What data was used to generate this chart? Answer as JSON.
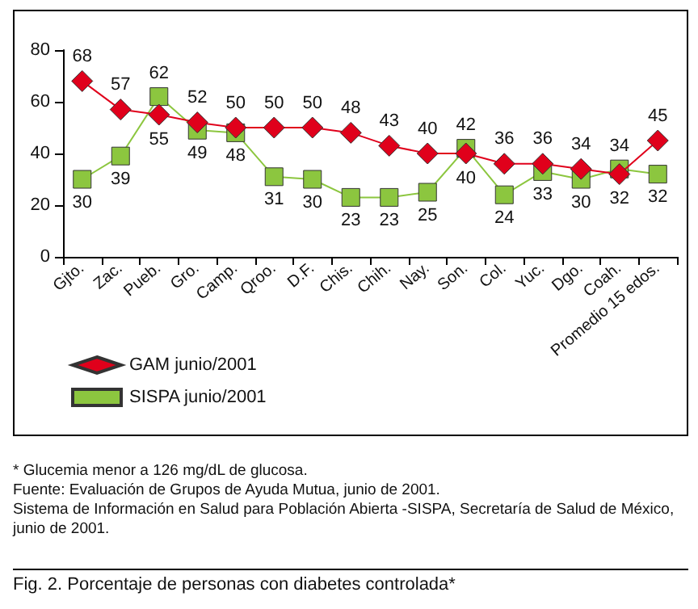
{
  "chart_data": {
    "type": "line",
    "title": "Fig. 2. Porcentaje de personas con diabetes controlada*",
    "annotations": [
      "* Glucemia menor a 126 mg/dL de glucosa.",
      "Fuente: Evaluación de Grupos de Ayuda Mutua, junio de 2001.",
      "Sistema de Información en Salud para Población Abierta -SISPA, Secretaría de Salud de México, junio de 2001."
    ],
    "categories": [
      "Gjto.",
      "Zac.",
      "Pueb.",
      "Gro.",
      "Camp.",
      "Qroo.",
      "D.F.",
      "Chis.",
      "Chih.",
      "Nay.",
      "Son.",
      "Col.",
      "Yuc.",
      "Dgo.",
      "Coah.",
      "Promedio 15 edos."
    ],
    "series": [
      {
        "name": "GAM junio/2001",
        "color": "#e0001b",
        "marker": "diamond",
        "values": [
          68,
          57,
          55,
          52,
          50,
          50,
          50,
          48,
          43,
          40,
          40,
          36,
          36,
          34,
          32,
          45
        ]
      },
      {
        "name": "SISPA junio/2001",
        "color": "#8cc63f",
        "marker": "square",
        "values": [
          30,
          39,
          62,
          49,
          48,
          31,
          30,
          23,
          23,
          25,
          42,
          24,
          33,
          30,
          34,
          32
        ]
      }
    ],
    "ylim": [
      0,
      80
    ],
    "yticks": [
      0,
      20,
      40,
      60,
      80
    ],
    "grid": false,
    "legend": "bottom left",
    "data_labels": true
  }
}
